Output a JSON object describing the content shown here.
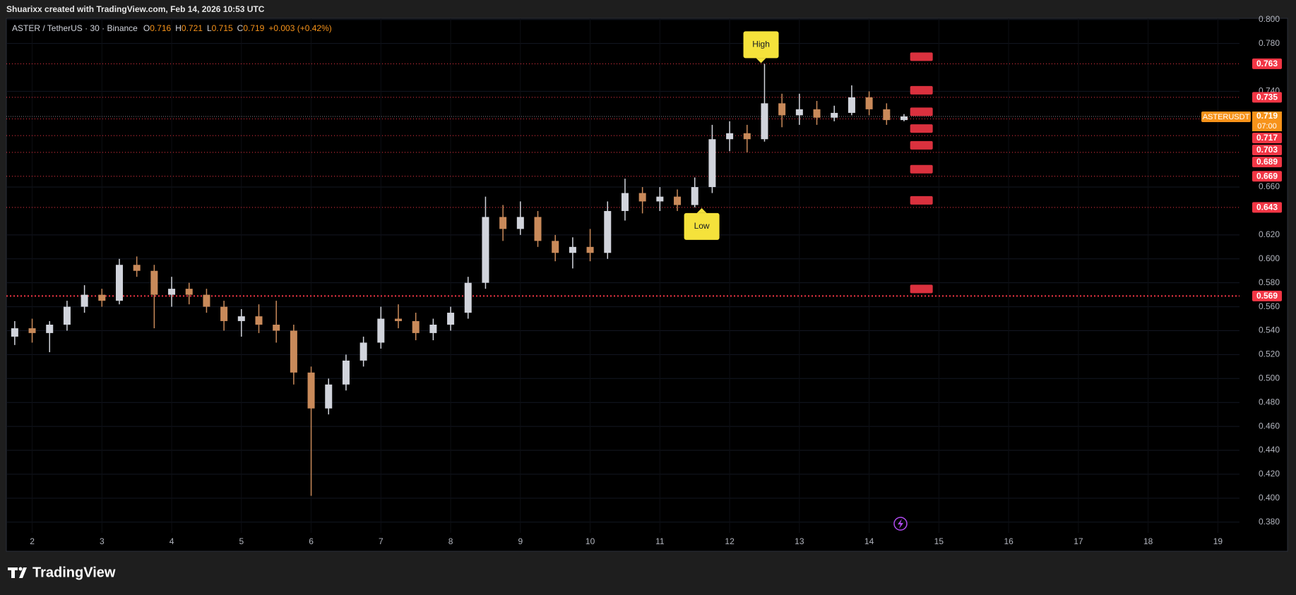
{
  "header": {
    "text": "Shuarixx created with TradingView.com, Feb 14, 2026 10:53 UTC"
  },
  "footer": {
    "brand": "TradingView"
  },
  "chart_data": {
    "type": "candlestick",
    "legend": {
      "symbol": "ASTER / TetherUS · 30 · Binance",
      "ohlc": [
        {
          "label": "O",
          "value": 0.716
        },
        {
          "label": "H",
          "value": 0.721
        },
        {
          "label": "L",
          "value": 0.715
        },
        {
          "label": "C",
          "value": 0.719
        }
      ],
      "change": "+0.003 (+0.42%)"
    },
    "up_color": "#d1d4dc",
    "down_color": "#c98a5a",
    "x": [
      1.75,
      2.0,
      2.25,
      2.5,
      2.75,
      3.0,
      3.25,
      3.5,
      3.75,
      4.0,
      4.25,
      4.5,
      4.75,
      5.0,
      5.25,
      5.5,
      5.75,
      6.0,
      6.25,
      6.5,
      6.75,
      7.0,
      7.25,
      7.5,
      7.75,
      8.0,
      8.25,
      8.5,
      8.75,
      9.0,
      9.25,
      9.5,
      9.75,
      10.0,
      10.25,
      10.5,
      10.75,
      11.0,
      11.25,
      11.5,
      11.75,
      12.0,
      12.25,
      12.5,
      12.75,
      13.0,
      13.25,
      13.5,
      13.75,
      14.0,
      14.25,
      14.5
    ],
    "open": [
      0.535,
      0.542,
      0.538,
      0.545,
      0.56,
      0.57,
      0.565,
      0.595,
      0.59,
      0.57,
      0.575,
      0.57,
      0.56,
      0.548,
      0.552,
      0.545,
      0.54,
      0.505,
      0.475,
      0.495,
      0.515,
      0.53,
      0.55,
      0.548,
      0.538,
      0.545,
      0.555,
      0.58,
      0.635,
      0.625,
      0.635,
      0.615,
      0.605,
      0.61,
      0.605,
      0.64,
      0.655,
      0.648,
      0.652,
      0.645,
      0.66,
      0.7,
      0.705,
      0.7,
      0.73,
      0.72,
      0.725,
      0.718,
      0.722,
      0.735,
      0.725,
      0.716
    ],
    "high": [
      0.548,
      0.55,
      0.548,
      0.565,
      0.578,
      0.575,
      0.6,
      0.602,
      0.595,
      0.585,
      0.58,
      0.575,
      0.565,
      0.558,
      0.562,
      0.565,
      0.545,
      0.51,
      0.5,
      0.52,
      0.535,
      0.56,
      0.562,
      0.555,
      0.55,
      0.56,
      0.585,
      0.652,
      0.645,
      0.648,
      0.64,
      0.62,
      0.618,
      0.625,
      0.648,
      0.667,
      0.66,
      0.66,
      0.658,
      0.668,
      0.712,
      0.715,
      0.712,
      0.763,
      0.738,
      0.738,
      0.732,
      0.728,
      0.745,
      0.74,
      0.73,
      0.721
    ],
    "low": [
      0.528,
      0.53,
      0.522,
      0.54,
      0.555,
      0.56,
      0.562,
      0.585,
      0.542,
      0.56,
      0.562,
      0.555,
      0.54,
      0.535,
      0.538,
      0.53,
      0.495,
      0.402,
      0.47,
      0.49,
      0.51,
      0.525,
      0.542,
      0.532,
      0.532,
      0.54,
      0.55,
      0.575,
      0.615,
      0.62,
      0.61,
      0.598,
      0.592,
      0.598,
      0.6,
      0.632,
      0.638,
      0.64,
      0.64,
      0.643,
      0.655,
      0.69,
      0.689,
      0.698,
      0.71,
      0.712,
      0.712,
      0.715,
      0.72,
      0.72,
      0.712,
      0.715
    ],
    "close": [
      0.542,
      0.538,
      0.545,
      0.56,
      0.57,
      0.565,
      0.595,
      0.59,
      0.57,
      0.575,
      0.57,
      0.56,
      0.548,
      0.552,
      0.545,
      0.54,
      0.505,
      0.475,
      0.495,
      0.515,
      0.53,
      0.55,
      0.548,
      0.538,
      0.545,
      0.555,
      0.58,
      0.635,
      0.625,
      0.635,
      0.615,
      0.605,
      0.61,
      0.605,
      0.64,
      0.655,
      0.648,
      0.652,
      0.645,
      0.66,
      0.7,
      0.705,
      0.7,
      0.73,
      0.72,
      0.725,
      0.718,
      0.722,
      0.735,
      0.725,
      0.716,
      0.719
    ],
    "xlim": [
      1.63,
      19.31
    ],
    "ylim": [
      0.371,
      0.801
    ],
    "xticks": [
      2,
      3,
      4,
      5,
      6,
      7,
      8,
      9,
      10,
      11,
      12,
      13,
      14,
      15,
      16,
      17,
      18,
      19
    ],
    "yticks": [
      {
        "value": 0.8,
        "label": "0.800"
      },
      {
        "value": 0.78,
        "label": "0.780"
      },
      {
        "value": 0.74,
        "label": "0.740"
      },
      {
        "value": 0.66,
        "label": "0.660"
      },
      {
        "value": 0.62,
        "label": "0.620"
      },
      {
        "value": 0.6,
        "label": "0.600"
      },
      {
        "value": 0.58,
        "label": "0.580"
      },
      {
        "value": 0.56,
        "label": "0.560"
      },
      {
        "value": 0.54,
        "label": "0.540"
      },
      {
        "value": 0.52,
        "label": "0.520"
      },
      {
        "value": 0.5,
        "label": "0.500"
      },
      {
        "value": 0.48,
        "label": "0.480"
      },
      {
        "value": 0.46,
        "label": "0.460"
      },
      {
        "value": 0.44,
        "label": "0.440"
      },
      {
        "value": 0.42,
        "label": "0.420"
      },
      {
        "value": 0.4,
        "label": "0.400"
      },
      {
        "value": 0.38,
        "label": "0.380"
      }
    ],
    "grid": true,
    "levels": [
      0.763,
      0.735,
      0.717,
      0.703,
      0.689,
      0.669,
      0.643,
      0.569
    ],
    "level_color": "#f23645",
    "last_price": {
      "value": 0.719,
      "symbol": "ASTERUSDT",
      "countdown": "07:00",
      "color": "#f7931a"
    },
    "annotations": [
      {
        "text": "High",
        "x": 12.45,
        "y": 0.763,
        "anchor": "above"
      },
      {
        "text": "Low",
        "x": 11.6,
        "y": 0.643,
        "anchor": "below"
      }
    ]
  }
}
